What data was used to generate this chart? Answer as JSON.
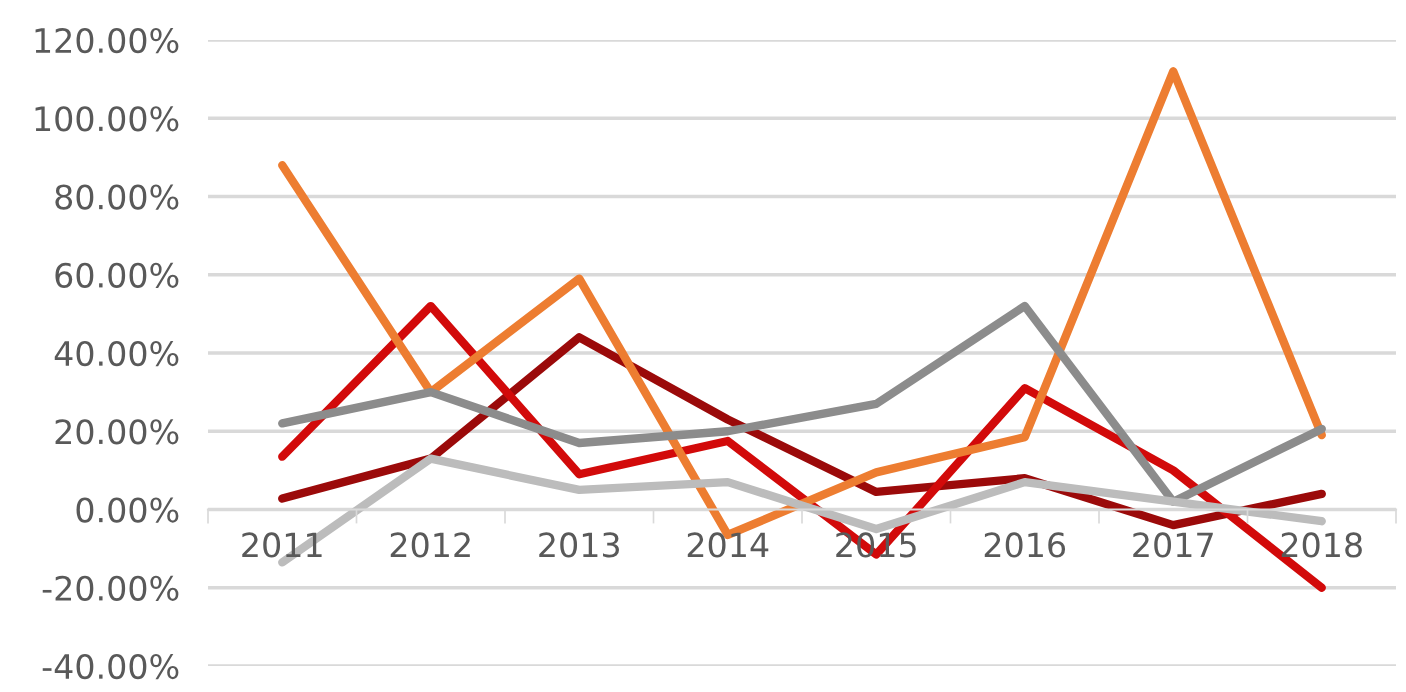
{
  "chart_data": {
    "type": "line",
    "categories": [
      "2011",
      "2012",
      "2013",
      "2014",
      "2015",
      "2016",
      "2017",
      "2018"
    ],
    "series": [
      {
        "color": "#9b0a0a",
        "values": [
          2.8,
          13,
          44,
          23,
          4.5,
          8,
          -4,
          4
        ]
      },
      {
        "color": "#d20a0a",
        "values": [
          13.5,
          52,
          9,
          17.5,
          -11.5,
          31,
          10,
          -20
        ]
      },
      {
        "color": "#ed7d31",
        "values": [
          88,
          30,
          59,
          -6.5,
          9.5,
          18.5,
          112,
          19
        ]
      },
      {
        "color": "#8c8c8c",
        "values": [
          22,
          30,
          17,
          20,
          27,
          52,
          2,
          20.6
        ]
      },
      {
        "color": "#bcbcbc",
        "values": [
          -13.5,
          13,
          5,
          7,
          -5,
          7,
          2,
          -3
        ]
      }
    ],
    "ylim": [
      -40,
      120
    ],
    "yticks": [
      {
        "value": -40,
        "label": "-40.00%"
      },
      {
        "value": -20,
        "label": "-20.00%"
      },
      {
        "value": 0,
        "label": "0.00%"
      },
      {
        "value": 20,
        "label": "20.00%"
      },
      {
        "value": 40,
        "label": "40.00%"
      },
      {
        "value": 60,
        "label": "60.00%"
      },
      {
        "value": 80,
        "label": "80.00%"
      },
      {
        "value": 100,
        "label": "100.00%"
      },
      {
        "value": 120,
        "label": "120.00%"
      }
    ],
    "grid": "y",
    "marker": "none",
    "line_style": "solid"
  }
}
